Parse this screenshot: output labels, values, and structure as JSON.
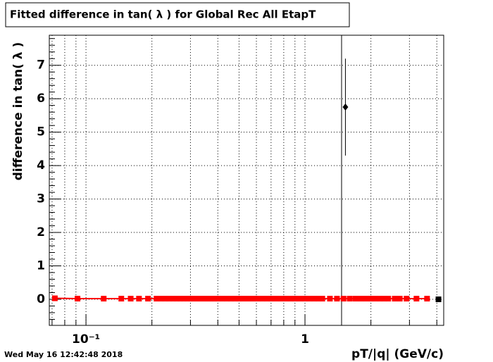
{
  "chart_data": {
    "type": "scatter",
    "title": "Fitted difference in tan( λ ) for Global Rec All EtapT",
    "x_label": "pT/|q| (GeV/c)",
    "y_label": "difference in tan( λ )",
    "timestamp": "Wed May 16 12:42:48 2018",
    "x_log": true,
    "grid": true,
    "xlim": [
      0.068,
      4.3
    ],
    "ylim": [
      -0.78,
      7.9
    ],
    "xticks": [
      {
        "value": 0.1,
        "label": "10⁻¹"
      },
      {
        "value": 1,
        "label": "1"
      }
    ],
    "xminor": [
      0.07,
      0.08,
      0.09,
      0.2,
      0.3,
      0.4,
      0.5,
      0.6,
      0.7,
      0.8,
      0.9,
      2,
      3,
      4
    ],
    "yticks": [
      0,
      1,
      2,
      3,
      4,
      5,
      6,
      7
    ],
    "series": [
      {
        "name": "red",
        "color": "#ff0000",
        "marker": "square",
        "line": true,
        "x": [
          0.0721,
          0.0915,
          0.1205,
          0.145,
          0.16,
          0.1746,
          0.192,
          0.21,
          0.22,
          0.23,
          0.24,
          0.25,
          0.26,
          0.27,
          0.28,
          0.29,
          0.3,
          0.31,
          0.32,
          0.33,
          0.34,
          0.35,
          0.36,
          0.37,
          0.38,
          0.39,
          0.4,
          0.42,
          0.44,
          0.46,
          0.48,
          0.5,
          0.52,
          0.55,
          0.58,
          0.61,
          0.64,
          0.67,
          0.7,
          0.74,
          0.78,
          0.82,
          0.86,
          0.9,
          0.95,
          1.0,
          1.05,
          1.1,
          1.15,
          1.2,
          1.3,
          1.4,
          1.5,
          1.6,
          1.7,
          1.8,
          1.9,
          2.0,
          2.1,
          2.2,
          2.3,
          2.4,
          2.57,
          2.71,
          2.91,
          3.23,
          3.61
        ],
        "values": [
          0.03,
          0.02,
          0.02,
          0.02,
          0.02,
          0.02,
          0.02,
          0.02,
          0.02,
          0.02,
          0.02,
          0.02,
          0.02,
          0.02,
          0.02,
          0.02,
          0.02,
          0.02,
          0.02,
          0.02,
          0.02,
          0.02,
          0.02,
          0.02,
          0.02,
          0.02,
          0.02,
          0.02,
          0.02,
          0.02,
          0.02,
          0.02,
          0.02,
          0.02,
          0.02,
          0.02,
          0.02,
          0.02,
          0.02,
          0.02,
          0.02,
          0.02,
          0.02,
          0.02,
          0.02,
          0.02,
          0.02,
          0.02,
          0.02,
          0.02,
          0.02,
          0.02,
          0.02,
          0.02,
          0.02,
          0.02,
          0.02,
          0.02,
          0.02,
          0.02,
          0.02,
          0.02,
          0.02,
          0.02,
          0.02,
          0.02,
          0.02
        ]
      },
      {
        "name": "black",
        "color": "#000000",
        "marker": "diamond",
        "line": false,
        "x": [
          1.53,
          4.07
        ],
        "values": [
          5.75,
          0
        ],
        "errors": [
          1.45,
          0
        ]
      }
    ]
  }
}
